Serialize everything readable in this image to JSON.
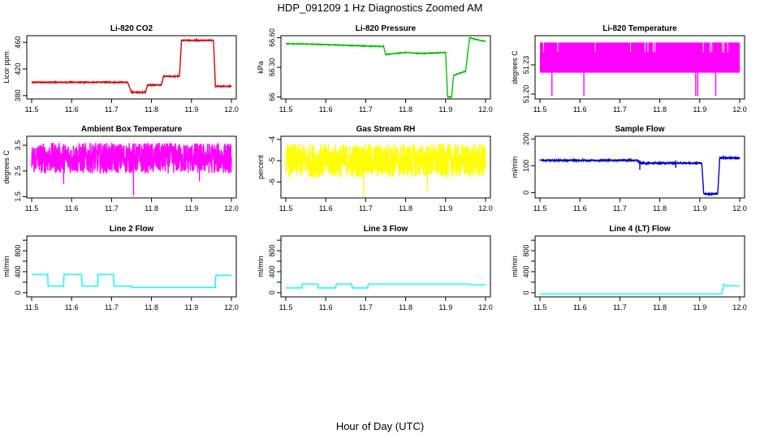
{
  "figure": {
    "title": "HDP_091209  1 Hz Diagnostics Zoomed AM",
    "xlabel": "Hour of Day (UTC)"
  },
  "chart_data": [
    {
      "type": "line",
      "title": "Li-820 CO2",
      "ylabel": "Licor ppm",
      "color": "#e00000",
      "xlim": [
        11.5,
        12.0
      ],
      "ylim": [
        375,
        470
      ],
      "xticks": [
        "11.5",
        "11.6",
        "11.7",
        "11.8",
        "11.9",
        "12.0"
      ],
      "yticks": [
        380,
        420,
        460
      ],
      "series": [
        {
          "name": "CO2",
          "noise": 0.8,
          "spikes": [],
          "x": [
            11.5,
            11.74,
            11.75,
            11.785,
            11.79,
            11.825,
            11.83,
            11.87,
            11.875,
            11.955,
            11.96,
            12.0
          ],
          "y": [
            400,
            400,
            385,
            385,
            396,
            396,
            409,
            409,
            463,
            463,
            394,
            394
          ]
        }
      ]
    },
    {
      "type": "line",
      "title": "Li-820 Pressure",
      "ylabel": "kPa",
      "color": "#00c000",
      "xlim": [
        11.5,
        12.0
      ],
      "ylim": [
        65.98,
        66.62
      ],
      "xticks": [
        "11.5",
        "11.6",
        "11.7",
        "11.8",
        "11.9",
        "12.0"
      ],
      "yticks": [
        66.0,
        66.3,
        66.6
      ],
      "series": [
        {
          "name": "Pressure",
          "noise": 0.004,
          "spikes": [],
          "x": [
            11.5,
            11.6,
            11.745,
            11.75,
            11.8,
            11.84,
            11.9,
            11.905,
            11.915,
            11.92,
            11.95,
            11.96,
            12.0
          ],
          "y": [
            66.54,
            66.53,
            66.51,
            66.43,
            66.45,
            66.44,
            66.45,
            66.0,
            66.0,
            66.22,
            66.26,
            66.6,
            66.56
          ]
        }
      ]
    },
    {
      "type": "line",
      "title": "Li-820 Temperature",
      "ylabel": "degrees C",
      "color": "#ff00ff",
      "xlim": [
        11.5,
        12.0
      ],
      "ylim": [
        51.195,
        51.26
      ],
      "xticks": [
        "11.5",
        "11.6",
        "11.7",
        "11.8",
        "11.9",
        "12.0"
      ],
      "yticks": [
        51.2,
        51.23
      ],
      "yticks_top": 51.23,
      "series": [
        {
          "name": "Temperature",
          "band": [
            51.222,
            51.253
          ],
          "spikes": [
            [
              11.53,
              51.198
            ],
            [
              11.61,
              51.198
            ],
            [
              11.89,
              51.198
            ],
            [
              11.895,
              51.198
            ],
            [
              11.94,
              51.198
            ]
          ],
          "x": [
            11.5,
            12.0
          ],
          "y": [
            51.222,
            51.222
          ]
        }
      ]
    },
    {
      "type": "line",
      "title": "Ambient Box Temperature",
      "ylabel": "degrees C",
      "color": "#ff00ff",
      "xlim": [
        11.5,
        12.0
      ],
      "ylim": [
        1.45,
        3.85
      ],
      "xticks": [
        "11.5",
        "11.6",
        "11.7",
        "11.8",
        "11.9",
        "12.0"
      ],
      "yticks": [
        1.5,
        2.5,
        3.5
      ],
      "series": [
        {
          "name": "Ambient Box Temperature",
          "noise": 0.75,
          "spikes": [
            [
              11.755,
              1.55
            ],
            [
              11.58,
              2.0
            ],
            [
              11.92,
              2.1
            ]
          ],
          "x": [
            11.5,
            12.0
          ],
          "y": [
            3.0,
            3.0
          ]
        }
      ]
    },
    {
      "type": "line",
      "title": "Gas Stream RH",
      "ylabel": "percent",
      "color": "#ffff00",
      "xlim": [
        11.5,
        12.0
      ],
      "ylim": [
        -6.75,
        -3.85
      ],
      "xticks": [
        "11.5",
        "11.6",
        "11.7",
        "11.8",
        "11.9",
        "12.0"
      ],
      "yticks": [
        -6.0,
        -5.0,
        -4.0
      ],
      "series": [
        {
          "name": "Gas Stream RH",
          "noise": 1.0,
          "spikes": [
            [
              11.695,
              -6.7
            ],
            [
              11.855,
              -6.4
            ]
          ],
          "x": [
            11.5,
            12.0
          ],
          "y": [
            -5.0,
            -5.0
          ]
        }
      ]
    },
    {
      "type": "line",
      "title": "Sample Flow",
      "ylabel": "ml/min",
      "color": "#0000cc",
      "xlim": [
        11.5,
        12.0
      ],
      "ylim": [
        -20,
        210
      ],
      "xticks": [
        "11.5",
        "11.6",
        "11.7",
        "11.8",
        "11.9",
        "12.0"
      ],
      "yticks": [
        0,
        100,
        200
      ],
      "series": [
        {
          "name": "Sample Flow",
          "noise": 3,
          "spikes": [
            [
              11.75,
              85
            ],
            [
              11.84,
              92
            ]
          ],
          "x": [
            11.5,
            11.745,
            11.75,
            11.905,
            11.91,
            11.945,
            11.95,
            12.0
          ],
          "y": [
            120,
            120,
            110,
            110,
            -5,
            -5,
            130,
            128
          ]
        }
      ]
    },
    {
      "type": "line",
      "title": "Line 2 Flow",
      "ylabel": "ml/min",
      "color": "#00ffff",
      "xlim": [
        11.5,
        12.0
      ],
      "ylim": [
        -80,
        1080
      ],
      "xticks": [
        "11.5",
        "11.6",
        "11.7",
        "11.8",
        "11.9",
        "12.0"
      ],
      "yticks": [
        0,
        400,
        800
      ],
      "yticks_minor": [
        200,
        600,
        1000
      ],
      "series": [
        {
          "name": "Line 2 Flow",
          "noise": 0,
          "spikes": [],
          "x": [
            11.5,
            11.54,
            11.541,
            11.58,
            11.581,
            11.625,
            11.626,
            11.665,
            11.666,
            11.705,
            11.706,
            11.75,
            11.751,
            11.96,
            11.961,
            12.0
          ],
          "y": [
            350,
            350,
            125,
            125,
            350,
            350,
            125,
            125,
            350,
            350,
            125,
            125,
            100,
            100,
            330,
            330
          ]
        }
      ]
    },
    {
      "type": "line",
      "title": "Line 3 Flow",
      "ylabel": "ml/min",
      "color": "#00ffff",
      "xlim": [
        11.5,
        12.0
      ],
      "ylim": [
        -80,
        1080
      ],
      "xticks": [
        "11.5",
        "11.6",
        "11.7",
        "11.8",
        "11.9",
        "12.0"
      ],
      "yticks": [
        0,
        400,
        800
      ],
      "yticks_minor": [
        200,
        600,
        1000
      ],
      "series": [
        {
          "name": "Line 3 Flow",
          "noise": 0,
          "spikes": [],
          "x": [
            11.5,
            11.54,
            11.541,
            11.58,
            11.581,
            11.625,
            11.626,
            11.665,
            11.666,
            11.705,
            11.706,
            11.96,
            11.961,
            12.0
          ],
          "y": [
            90,
            90,
            165,
            165,
            90,
            90,
            165,
            165,
            90,
            90,
            165,
            165,
            150,
            150
          ]
        }
      ]
    },
    {
      "type": "line",
      "title": "Line 4 (LT) Flow",
      "ylabel": "ml/min",
      "color": "#00ffff",
      "xlim": [
        11.5,
        12.0
      ],
      "ylim": [
        -80,
        1080
      ],
      "xticks": [
        "11.5",
        "11.6",
        "11.7",
        "11.8",
        "11.9",
        "12.0"
      ],
      "yticks": [
        0,
        400,
        800
      ],
      "yticks_minor": [
        200,
        600,
        1000
      ],
      "series": [
        {
          "name": "Line 4 (LT) Flow",
          "noise": 0,
          "spikes": [],
          "x": [
            11.5,
            11.955,
            11.96,
            11.965,
            12.0
          ],
          "y": [
            -25,
            -25,
            160,
            130,
            130
          ]
        }
      ]
    }
  ]
}
